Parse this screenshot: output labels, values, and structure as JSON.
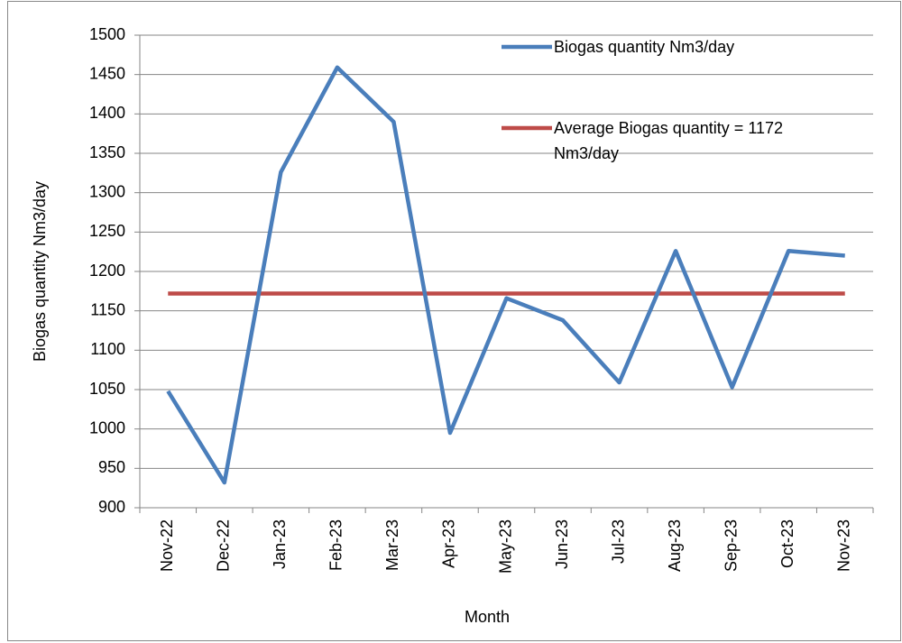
{
  "chart_data": {
    "type": "line",
    "categories": [
      "Nov-22",
      "Dec-22",
      "Jan-23",
      "Feb-23",
      "Mar-23",
      "Apr-23",
      "May-23",
      "Jun-23",
      "Jul-23",
      "Aug-23",
      "Sep-23",
      "Oct-23",
      "Nov-23"
    ],
    "series": [
      {
        "name": "Biogas quantity Nm3/day",
        "color": "#4a7ebb",
        "values": [
          1048,
          932,
          1326,
          1459,
          1390,
          995,
          1166,
          1138,
          1059,
          1226,
          1053,
          1226,
          1220
        ]
      },
      {
        "name": "Average Biogas quantity = 1172 Nm3/day",
        "color": "#be4b48",
        "values": [
          1172,
          1172,
          1172,
          1172,
          1172,
          1172,
          1172,
          1172,
          1172,
          1172,
          1172,
          1172,
          1172
        ]
      }
    ],
    "ylim": [
      900,
      1500
    ],
    "yticks": [
      900,
      950,
      1000,
      1050,
      1100,
      1150,
      1200,
      1250,
      1300,
      1350,
      1400,
      1450,
      1500
    ],
    "y_label": "Biogas quantity Nm3/day",
    "x_label": "Month",
    "grid": true,
    "legend_position": "upper right"
  }
}
